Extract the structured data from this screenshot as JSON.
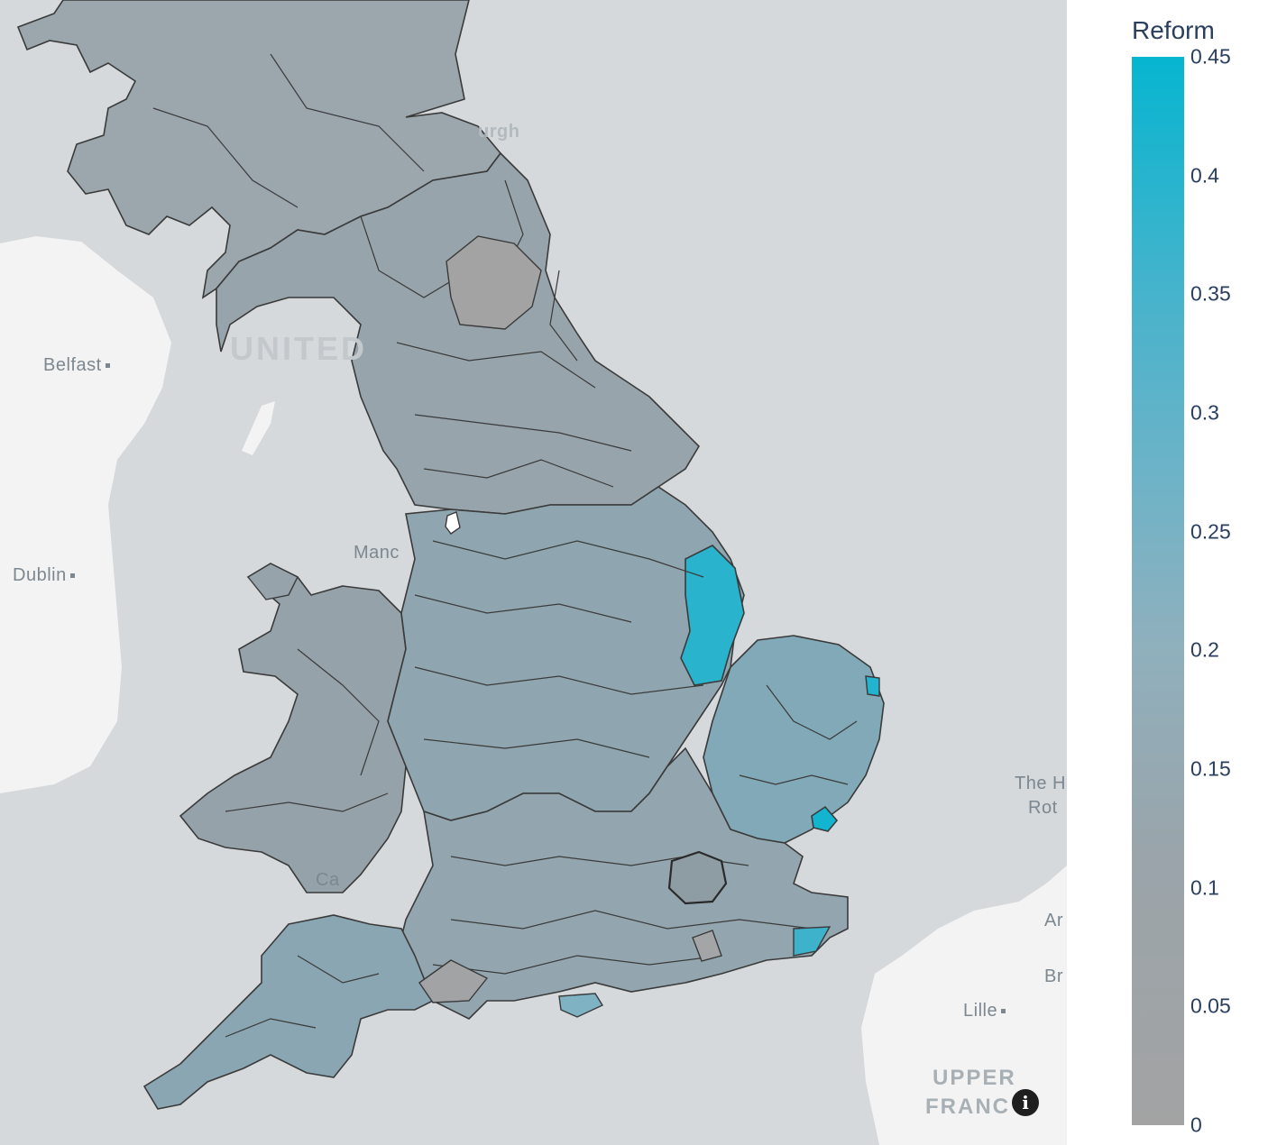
{
  "legend": {
    "title": "Reform",
    "ticks": [
      "0.45",
      "0.4",
      "0.35",
      "0.3",
      "0.25",
      "0.2",
      "0.15",
      "0.1",
      "0.05",
      "0"
    ],
    "min": 0,
    "max": 0.45,
    "color_low": "#a3a3a3",
    "color_high": "#06b5d0"
  },
  "map": {
    "places": {
      "belfast": "Belfast",
      "dublin": "Dublin",
      "manchester": "Manc",
      "edinburgh": "urgh",
      "cardiff": "Ca",
      "lille": "Lille",
      "the_hague": "The H",
      "rotterdam": "Rot",
      "amsterdam": "Ar",
      "brussels": "Br"
    },
    "countries": {
      "united_kingdom": "UNITED",
      "upper_france_1": "UPPER",
      "upper_france_2": "FRANC"
    },
    "info_icon": "info-icon",
    "colors": {
      "sea": "#d5d9db",
      "land_other": "#f2f2f2",
      "border": "#3a3a3a"
    }
  }
}
